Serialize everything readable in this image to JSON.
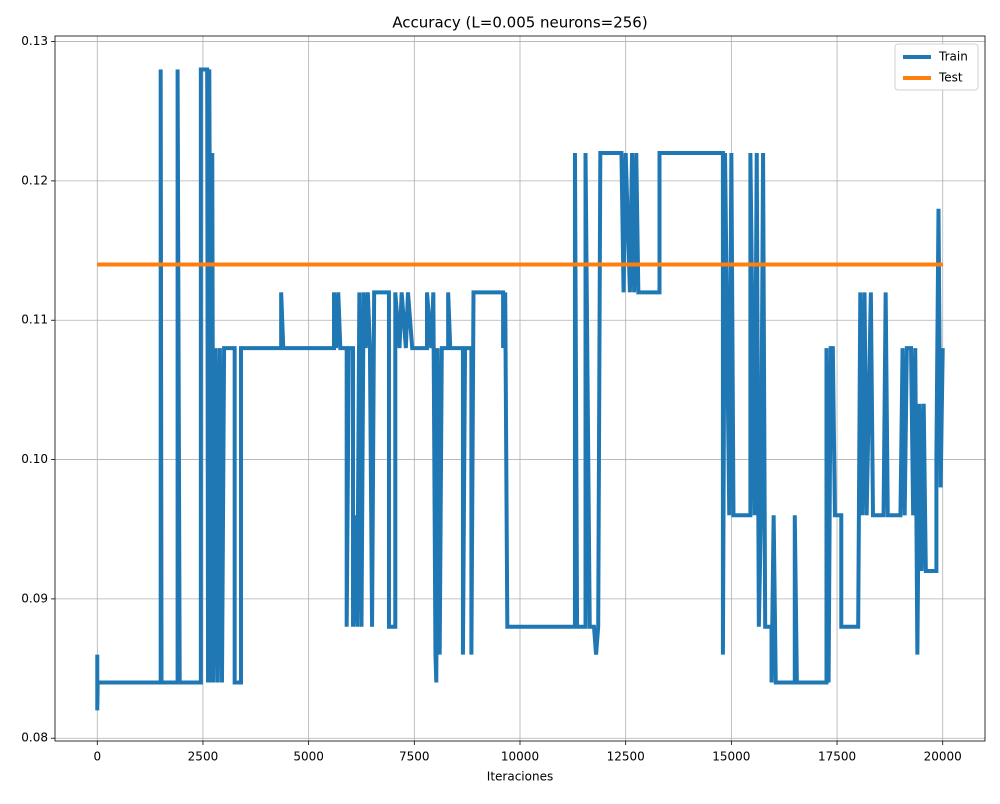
{
  "chart_data": {
    "type": "line",
    "title": "Accuracy (L=0.005 neurons=256)",
    "xlabel": "Iteraciones",
    "xlim": [
      -1000,
      21000
    ],
    "ylim": [
      0.0798,
      0.1304
    ],
    "xticks": [
      0,
      2500,
      5000,
      7500,
      10000,
      12500,
      15000,
      17500,
      20000
    ],
    "yticks": [
      0.08,
      0.09,
      {
        "value": 0.1,
        "label": "0.10"
      },
      0.11,
      0.12,
      0.13
    ],
    "grid": true,
    "legend": "upper right",
    "series": [
      {
        "name": "Train",
        "color": "#1f77b4",
        "x": [
          0,
          0,
          10,
          1500,
          1500,
          1520,
          1900,
          1900,
          1950,
          2450,
          2450,
          2600,
          2620,
          2650,
          2700,
          2720,
          2750,
          2800,
          2850,
          2900,
          2950,
          3000,
          3250,
          3250,
          3400,
          3400,
          4350,
          4350,
          4400,
          5600,
          5600,
          5650,
          5700,
          5750,
          5900,
          5900,
          5950,
          6050,
          6050,
          6100,
          6150,
          6200,
          6250,
          6300,
          6350,
          6400,
          6450,
          6500,
          6550,
          6900,
          6900,
          7050,
          7050,
          7150,
          7200,
          7300,
          7350,
          7450,
          7800,
          7800,
          7900,
          7950,
          8000,
          8020,
          8050,
          8100,
          8150,
          8300,
          8300,
          8350,
          8650,
          8650,
          8700,
          8850,
          8850,
          8900,
          9600,
          9600,
          9650,
          9700,
          11300,
          11300,
          11350,
          11550,
          11550,
          11650,
          11750,
          11800,
          11850,
          11900,
          12400,
          12450,
          12500,
          12600,
          12650,
          12700,
          12750,
          12800,
          13300,
          13300,
          14800,
          14800,
          14850,
          14950,
          15000,
          15050,
          15450,
          15450,
          15550,
          15600,
          15650,
          15700,
          15750,
          15800,
          15950,
          15950,
          16000,
          16050,
          16500,
          16500,
          16550,
          17250,
          17250,
          17300,
          17350,
          17400,
          17450,
          17600,
          17600,
          18000,
          18050,
          18100,
          18150,
          18200,
          18300,
          18350,
          18600,
          18650,
          18700,
          19000,
          19050,
          19100,
          19150,
          19250,
          19300,
          19350,
          19400,
          19450,
          19500,
          19550,
          19600,
          19850,
          19850,
          19900,
          19950,
          20000
        ],
        "values": [
          0.086,
          0.082,
          0.084,
          0.084,
          0.128,
          0.084,
          0.084,
          0.128,
          0.084,
          0.084,
          0.128,
          0.128,
          0.084,
          0.128,
          0.084,
          0.122,
          0.084,
          0.108,
          0.084,
          0.108,
          0.084,
          0.108,
          0.108,
          0.084,
          0.084,
          0.108,
          0.108,
          0.112,
          0.108,
          0.108,
          0.112,
          0.108,
          0.112,
          0.108,
          0.108,
          0.088,
          0.108,
          0.108,
          0.088,
          0.096,
          0.088,
          0.112,
          0.088,
          0.112,
          0.108,
          0.112,
          0.108,
          0.088,
          0.112,
          0.112,
          0.088,
          0.088,
          0.112,
          0.108,
          0.112,
          0.108,
          0.112,
          0.108,
          0.108,
          0.112,
          0.108,
          0.112,
          0.086,
          0.084,
          0.108,
          0.086,
          0.108,
          0.108,
          0.112,
          0.108,
          0.108,
          0.086,
          0.108,
          0.108,
          0.086,
          0.112,
          0.112,
          0.108,
          0.112,
          0.088,
          0.088,
          0.122,
          0.088,
          0.088,
          0.122,
          0.088,
          0.088,
          0.086,
          0.088,
          0.122,
          0.122,
          0.112,
          0.122,
          0.112,
          0.122,
          0.112,
          0.122,
          0.112,
          0.112,
          0.122,
          0.122,
          0.086,
          0.122,
          0.096,
          0.122,
          0.096,
          0.096,
          0.122,
          0.096,
          0.122,
          0.088,
          0.096,
          0.122,
          0.088,
          0.088,
          0.084,
          0.096,
          0.084,
          0.084,
          0.096,
          0.084,
          0.084,
          0.108,
          0.084,
          0.108,
          0.108,
          0.096,
          0.096,
          0.088,
          0.088,
          0.112,
          0.096,
          0.112,
          0.096,
          0.112,
          0.096,
          0.096,
          0.112,
          0.096,
          0.096,
          0.108,
          0.096,
          0.108,
          0.108,
          0.096,
          0.108,
          0.086,
          0.104,
          0.092,
          0.104,
          0.092,
          0.092,
          0.1,
          0.118,
          0.098,
          0.108
        ]
      },
      {
        "name": "Test",
        "color": "#ff7f0e",
        "x": [
          0,
          20000
        ],
        "values": [
          0.114,
          0.114
        ]
      }
    ]
  }
}
